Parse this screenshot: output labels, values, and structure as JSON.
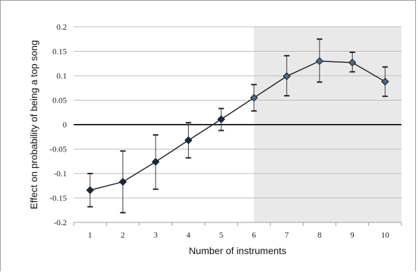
{
  "chart_data": {
    "type": "line",
    "title": "",
    "xlabel": "Number of instruments",
    "ylabel": "Effect on probability of being a top song",
    "x": [
      1,
      2,
      3,
      4,
      5,
      6,
      7,
      8,
      9,
      10
    ],
    "x_tick_labels": [
      "1",
      "2",
      "3",
      "4",
      "5",
      "6",
      "7",
      "8",
      "9",
      "10"
    ],
    "y_ticks": [
      0.2,
      0.15,
      0.1,
      0.05,
      0,
      -0.05,
      -0.1,
      -0.15,
      -0.2
    ],
    "y_tick_labels": [
      "0.2",
      "0.15",
      "0.1",
      "0.05",
      "0",
      "-0.05",
      "-0.1",
      "-0.15",
      "-0.2"
    ],
    "ylim": [
      -0.2,
      0.2
    ],
    "series": [
      {
        "values": [
          -0.134,
          -0.117,
          -0.076,
          -0.032,
          0.011,
          0.055,
          0.099,
          0.13,
          0.127,
          0.088
        ],
        "error_low": [
          -0.168,
          -0.18,
          -0.132,
          -0.068,
          -0.012,
          0.028,
          0.059,
          0.087,
          0.108,
          0.058
        ],
        "error_high": [
          -0.1,
          -0.054,
          -0.021,
          0.004,
          0.033,
          0.082,
          0.141,
          0.175,
          0.148,
          0.118
        ]
      }
    ],
    "shaded_region": {
      "x_from": 6,
      "x_to": 10,
      "color": "#e9e9e9"
    },
    "grid": true,
    "legend": "none",
    "colors": {
      "line": "#222222",
      "marker": "#1a2a44",
      "marker_shaded": "#4a6a8a",
      "gridline": "#bbbbbb",
      "zero_line": "#222222"
    }
  }
}
